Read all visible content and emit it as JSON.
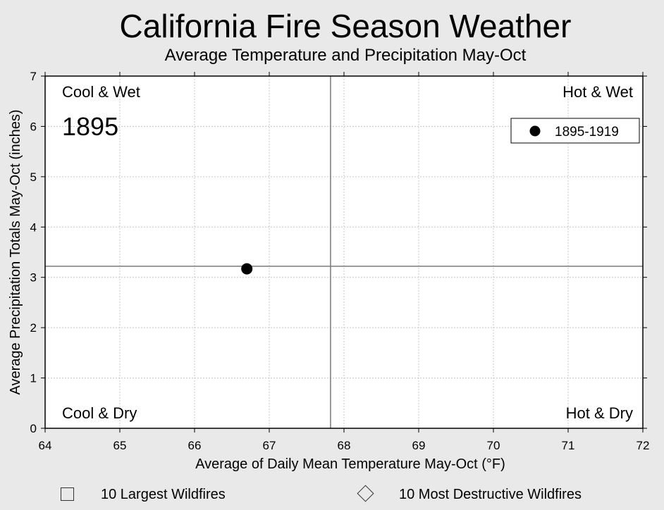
{
  "header": {
    "title": "California Fire Season Weather",
    "subtitle": "Average Temperature and Precipitation May-Oct"
  },
  "chart_data": {
    "type": "scatter",
    "xlabel": "Average of Daily Mean Temperature May-Oct (°F)",
    "ylabel": "Average Precipitation Totals May-Oct (inches)",
    "xlim": [
      64,
      72
    ],
    "ylim": [
      0,
      7
    ],
    "x_ticks": [
      "64",
      "65",
      "66",
      "67",
      "68",
      "69",
      "70",
      "71",
      "72"
    ],
    "y_ticks": [
      "0",
      "1",
      "2",
      "3",
      "4",
      "5",
      "6",
      "7"
    ],
    "grid": true,
    "reference_lines": {
      "x": 67.82,
      "y": 3.22
    },
    "quadrant_labels": {
      "top_left": "Cool & Wet",
      "top_right": "Hot & Wet",
      "bottom_left": "Cool & Dry",
      "bottom_right": "Hot & Dry"
    },
    "year_label": "1895",
    "legend": {
      "placement": "top-right",
      "entries": [
        "1895-1919"
      ]
    },
    "series": [
      {
        "name": "1895-1919",
        "color": "#000000",
        "points": [
          {
            "x": 66.7,
            "y": 3.17
          }
        ]
      }
    ]
  },
  "bottom_legend": {
    "largest_label": "10 Largest Wildfires",
    "destructive_label": "10 Most Destructive Wildfires"
  }
}
